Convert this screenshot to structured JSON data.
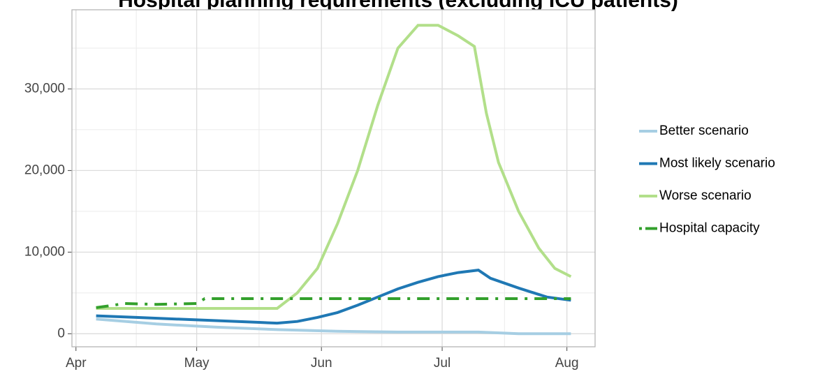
{
  "chart_data": {
    "type": "line",
    "title": "Hospital planning requirements (excluding ICU patients)",
    "xlim": [
      -1,
      129
    ],
    "xticks": [
      {
        "value": 0,
        "label": "Apr"
      },
      {
        "value": 30,
        "label": "May"
      },
      {
        "value": 61,
        "label": "Jun"
      },
      {
        "value": 91,
        "label": "Jul"
      },
      {
        "value": 122,
        "label": "Aug"
      }
    ],
    "ylim": [
      -1600,
      39700
    ],
    "yticks": [
      0,
      {
        "value": 10000,
        "label": "10,000"
      },
      {
        "value": 20000,
        "label": "20,000"
      },
      {
        "value": 30000,
        "label": "30,000"
      }
    ],
    "grid": true,
    "legend": "right",
    "series": [
      {
        "name": "Better scenario",
        "color": "#a6cee3",
        "dash": "solid",
        "x": [
          5,
          20,
          35,
          50,
          65,
          80,
          100,
          110,
          123
        ],
        "values": [
          1800,
          1200,
          800,
          500,
          300,
          200,
          200,
          0,
          0
        ]
      },
      {
        "name": "Most likely scenario",
        "color": "#1f78b4",
        "dash": "solid",
        "x": [
          5,
          15,
          30,
          45,
          50,
          55,
          60,
          65,
          70,
          75,
          80,
          85,
          90,
          95,
          100,
          103,
          110,
          117,
          123
        ],
        "values": [
          2200,
          2000,
          1700,
          1400,
          1300,
          1500,
          2000,
          2600,
          3500,
          4500,
          5500,
          6300,
          7000,
          7500,
          7800,
          6800,
          5600,
          4500,
          4100
        ]
      },
      {
        "name": "Worse scenario",
        "color": "#b2df8a",
        "dash": "solid",
        "x": [
          5,
          50,
          55,
          60,
          65,
          70,
          75,
          80,
          85,
          90,
          95,
          99,
          102,
          105,
          110,
          115,
          119,
          123
        ],
        "values": [
          3100,
          3100,
          5000,
          8000,
          13500,
          20000,
          28000,
          35000,
          37800,
          37800,
          36500,
          35200,
          27000,
          21000,
          15000,
          10500,
          8000,
          7000
        ]
      },
      {
        "name": "Hospital capacity",
        "color": "#33a02c",
        "dash": "dashdot",
        "x": [
          5,
          8,
          12,
          20,
          30,
          32,
          123
        ],
        "values": [
          3200,
          3400,
          3700,
          3600,
          3700,
          4300,
          4300
        ]
      }
    ]
  }
}
